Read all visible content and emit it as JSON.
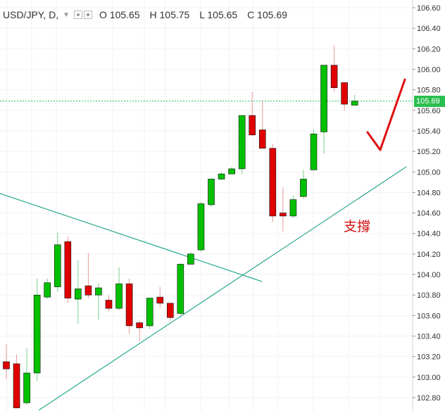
{
  "header": {
    "symbol": "USD/JPY, D,",
    "open": "O 105.65",
    "high": "H 105.75",
    "low": "L 105.65",
    "close": "C 105.69"
  },
  "price_badge": "105.69",
  "annotation": "支撐",
  "colors": {
    "up": "#00c000",
    "down": "#e00000",
    "trendline": "#2aa88f",
    "last_price": "#2bbf4f"
  },
  "chart_data": {
    "type": "candlestick",
    "ylim": [
      102.7,
      106.67
    ],
    "yticks": [
      "106.60",
      "106.40",
      "106.20",
      "106.00",
      "105.80",
      "105.60",
      "105.40",
      "105.20",
      "105.00",
      "104.80",
      "104.60",
      "104.40",
      "104.20",
      "104.00",
      "103.80",
      "103.60",
      "103.40",
      "103.20",
      "103.00",
      "102.80"
    ],
    "last_price": 105.69,
    "candles": [
      {
        "o": 103.15,
        "h": 103.32,
        "l": 102.98,
        "c": 103.08
      },
      {
        "o": 103.13,
        "h": 103.22,
        "l": 102.7,
        "c": 102.7
      },
      {
        "o": 102.75,
        "h": 103.28,
        "l": 102.73,
        "c": 103.04
      },
      {
        "o": 103.04,
        "h": 103.96,
        "l": 102.96,
        "c": 103.8
      },
      {
        "o": 103.78,
        "h": 103.96,
        "l": 103.76,
        "c": 103.92
      },
      {
        "o": 103.88,
        "h": 104.41,
        "l": 103.83,
        "c": 104.29
      },
      {
        "o": 104.32,
        "h": 104.37,
        "l": 103.72,
        "c": 103.77
      },
      {
        "o": 103.76,
        "h": 104.14,
        "l": 103.52,
        "c": 103.86
      },
      {
        "o": 103.89,
        "h": 104.21,
        "l": 103.77,
        "c": 103.8
      },
      {
        "o": 103.8,
        "h": 103.92,
        "l": 103.56,
        "c": 103.87
      },
      {
        "o": 103.75,
        "h": 103.8,
        "l": 103.64,
        "c": 103.67
      },
      {
        "o": 103.67,
        "h": 104.07,
        "l": 103.65,
        "c": 103.91
      },
      {
        "o": 103.91,
        "h": 103.96,
        "l": 103.42,
        "c": 103.5
      },
      {
        "o": 103.53,
        "h": 103.55,
        "l": 103.35,
        "c": 103.48
      },
      {
        "o": 103.5,
        "h": 103.77,
        "l": 103.47,
        "c": 103.77
      },
      {
        "o": 103.78,
        "h": 103.88,
        "l": 103.67,
        "c": 103.72
      },
      {
        "o": 103.72,
        "h": 103.72,
        "l": 103.55,
        "c": 103.58
      },
      {
        "o": 103.62,
        "h": 104.11,
        "l": 103.61,
        "c": 104.1
      },
      {
        "o": 104.1,
        "h": 104.22,
        "l": 104.1,
        "c": 104.2
      },
      {
        "o": 104.24,
        "h": 104.71,
        "l": 104.22,
        "c": 104.69
      },
      {
        "o": 104.68,
        "h": 104.94,
        "l": 104.66,
        "c": 104.93
      },
      {
        "o": 104.93,
        "h": 105.0,
        "l": 104.92,
        "c": 104.98
      },
      {
        "o": 104.98,
        "h": 105.05,
        "l": 104.98,
        "c": 105.03
      },
      {
        "o": 105.03,
        "h": 105.55,
        "l": 104.98,
        "c": 105.55
      },
      {
        "o": 105.55,
        "h": 105.78,
        "l": 105.35,
        "c": 105.36
      },
      {
        "o": 105.41,
        "h": 105.7,
        "l": 105.23,
        "c": 105.23
      },
      {
        "o": 105.23,
        "h": 105.27,
        "l": 104.51,
        "c": 104.57
      },
      {
        "o": 104.6,
        "h": 104.85,
        "l": 104.42,
        "c": 104.57
      },
      {
        "o": 104.57,
        "h": 104.77,
        "l": 104.55,
        "c": 104.73
      },
      {
        "o": 104.76,
        "h": 105.02,
        "l": 104.74,
        "c": 104.93
      },
      {
        "o": 105.02,
        "h": 105.41,
        "l": 105.02,
        "c": 105.37
      },
      {
        "o": 105.39,
        "h": 106.03,
        "l": 105.18,
        "c": 106.04
      },
      {
        "o": 106.04,
        "h": 106.23,
        "l": 105.78,
        "c": 105.82
      },
      {
        "o": 105.87,
        "h": 105.87,
        "l": 105.6,
        "c": 105.66
      },
      {
        "o": 105.65,
        "h": 105.75,
        "l": 105.65,
        "c": 105.69
      }
    ]
  }
}
